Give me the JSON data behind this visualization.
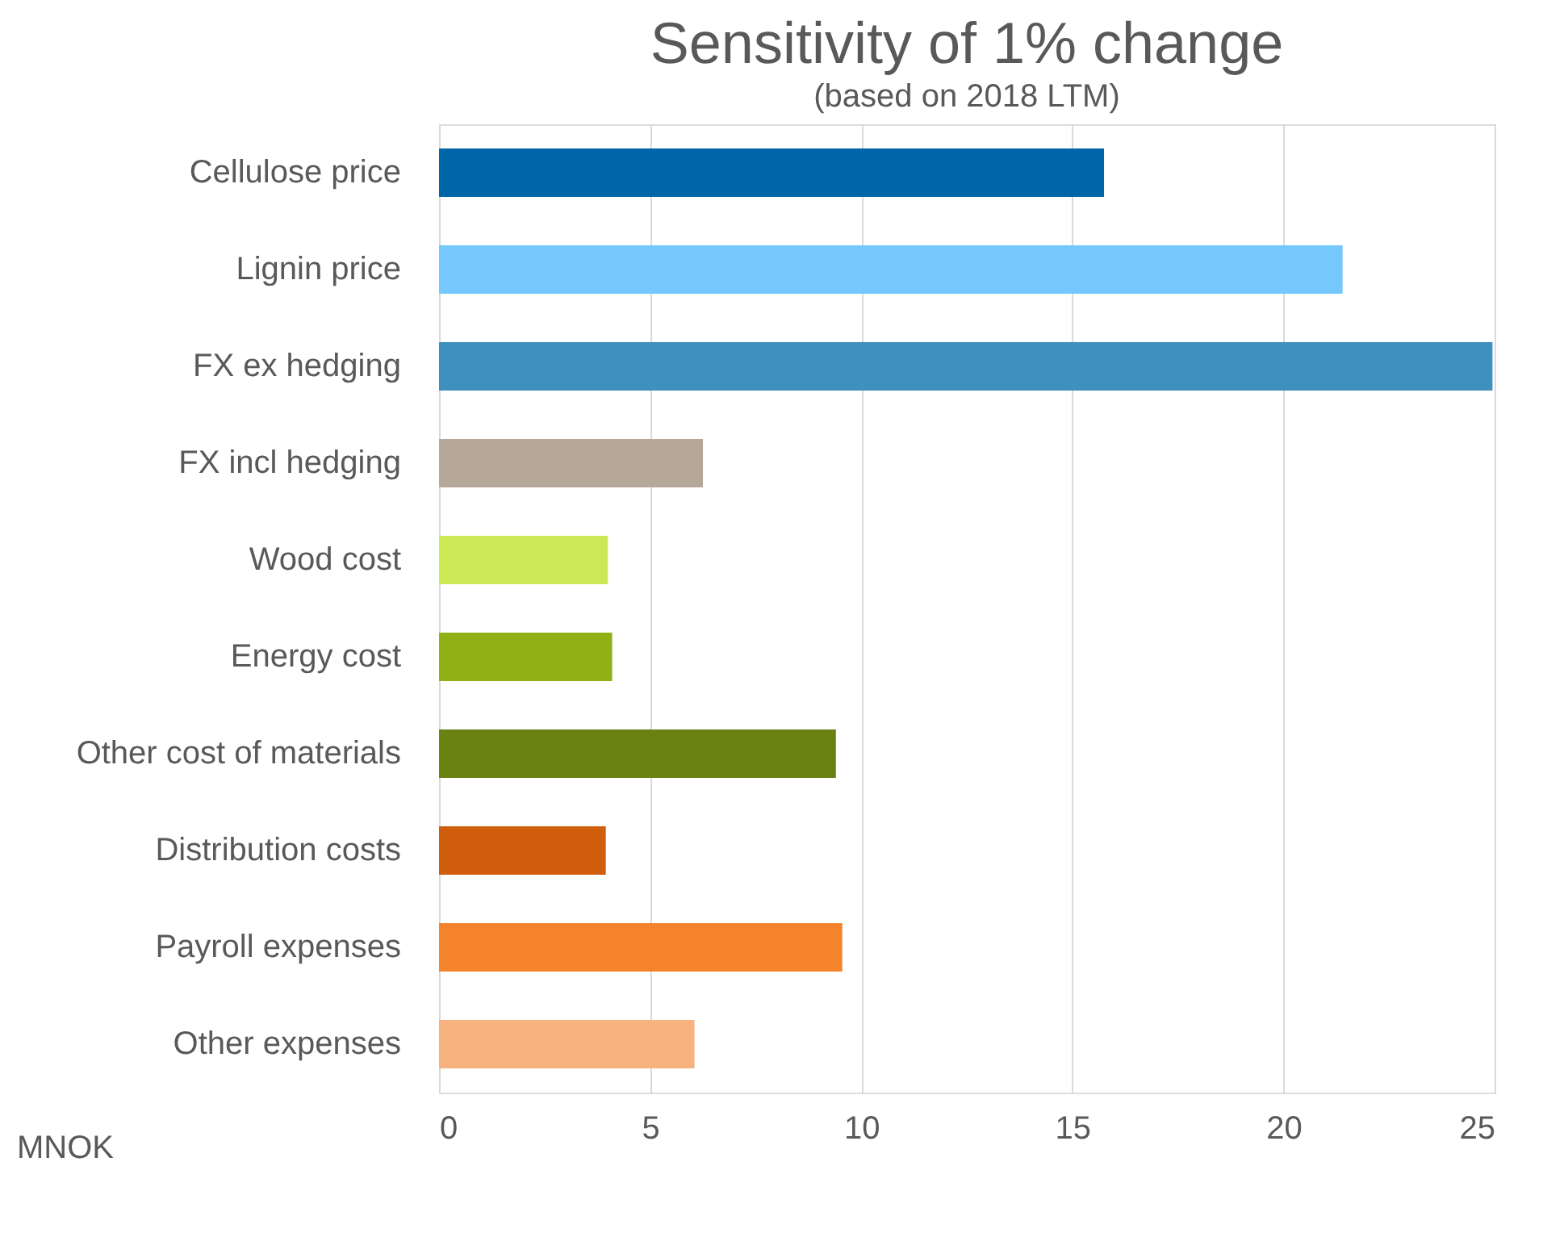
{
  "chart_data": {
    "type": "bar",
    "orientation": "horizontal",
    "title": "Sensitivity of 1% change",
    "subtitle": "(based on 2018 LTM)",
    "xlabel": "MNOK",
    "categories": [
      "Cellulose price",
      "Lignin price",
      "FX ex hedging",
      "FX incl hedging",
      "Wood cost",
      "Energy cost",
      "Other cost of materials",
      "Distribution costs",
      "Payroll expenses",
      "Other expenses"
    ],
    "values": [
      15.75,
      21.4,
      24.95,
      6.25,
      4.0,
      4.1,
      9.4,
      3.95,
      9.55,
      6.05
    ],
    "colors": [
      "#0066a8",
      "#75c8fd",
      "#3f8fbf",
      "#b5a898",
      "#cde855",
      "#91b015",
      "#6a8212",
      "#cf5d0b",
      "#f5832b",
      "#f8b27f"
    ],
    "xlim": [
      0,
      25
    ],
    "xticks": [
      0,
      5,
      10,
      15,
      20,
      25
    ],
    "grid": "x"
  }
}
